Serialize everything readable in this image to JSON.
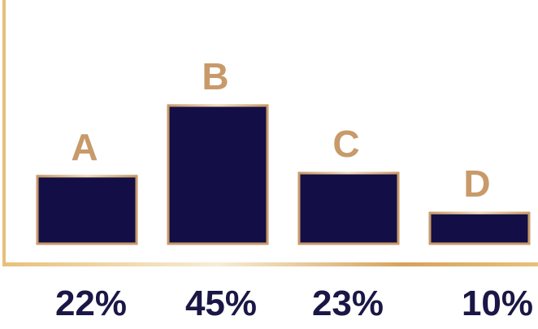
{
  "colors": {
    "bar_fill": "#130e45",
    "bar_border": "#c89a6a",
    "category_label": "#c89a6a",
    "value_label": "#1a1746",
    "axis": "#e8c07a",
    "axis_highlight": "#f7ecd6"
  },
  "chart_data": {
    "type": "bar",
    "categories": [
      "A",
      "B",
      "C",
      "D"
    ],
    "values": [
      22,
      45,
      23,
      10
    ],
    "value_labels": [
      "22%",
      "45%",
      "23%",
      "10%"
    ],
    "title": "",
    "xlabel": "",
    "ylabel": "",
    "ylim": [
      0,
      55
    ],
    "grid": false,
    "legend": "none"
  }
}
